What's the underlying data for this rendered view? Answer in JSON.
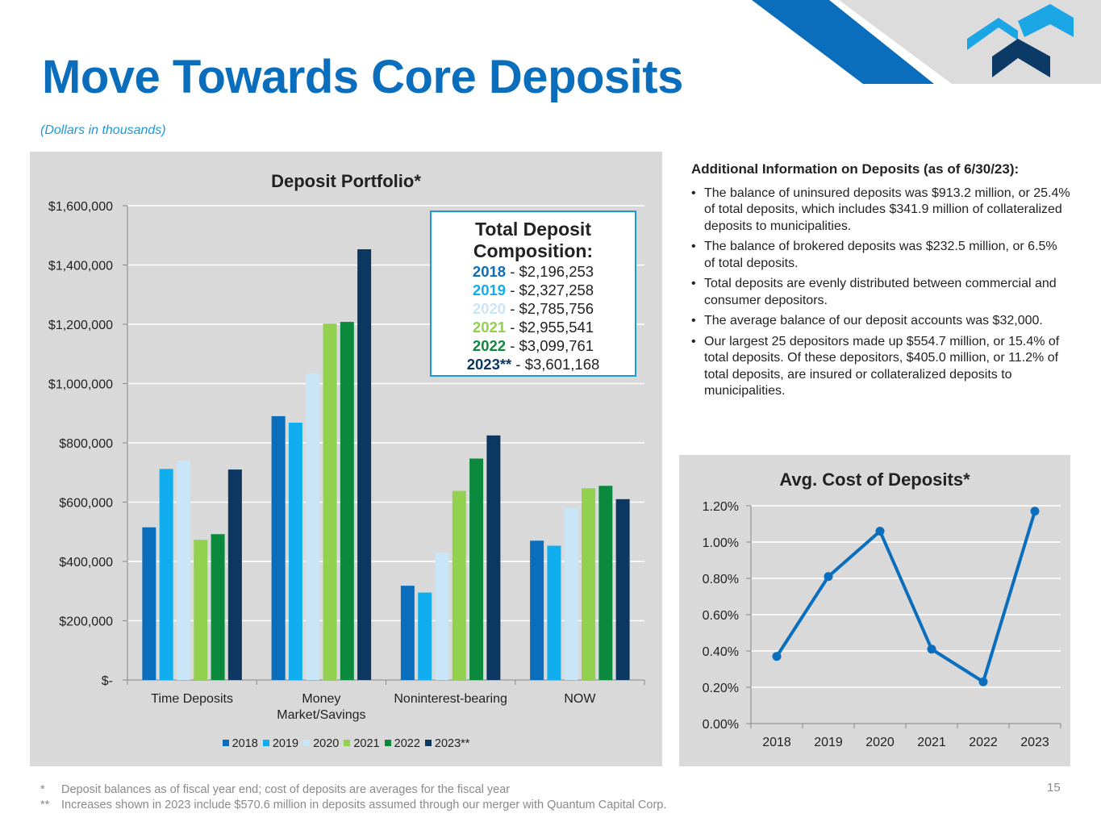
{
  "title": "Move Towards Core Deposits",
  "subtitle": "(Dollars in thousands)",
  "colors": {
    "brand_blue": "#0a6ebd",
    "y2018": "#0a6ebd",
    "y2019": "#10aeef",
    "y2020": "#c9e6f9",
    "y2021": "#92d050",
    "y2022": "#0b8a3e",
    "y2023": "#0b3761"
  },
  "composition": {
    "title_line1": "Total Deposit",
    "title_line2": "Composition:",
    "rows": [
      {
        "year": "2018",
        "value": " - $2,196,253"
      },
      {
        "year": "2019",
        "value": " - $2,327,258"
      },
      {
        "year": "2020",
        "value": " - $2,785,756"
      },
      {
        "year": "2021",
        "value": " - $2,955,541"
      },
      {
        "year": "2022",
        "value": " - $3,099,761"
      },
      {
        "year": "2023**",
        "value": " - $3,601,168"
      }
    ]
  },
  "info": {
    "title": "Additional Information on Deposits (as of 6/30/23):",
    "bullets": [
      "The balance of uninsured deposits was $913.2 million, or 25.4% of total deposits, which includes $341.9 million of collateralized deposits to municipalities.",
      "The balance of brokered deposits was $232.5 million, or 6.5% of total deposits.",
      "Total deposits are evenly distributed between commercial and consumer depositors.",
      "The average balance of our deposit accounts was $32,000.",
      "Our largest 25 depositors made up $554.7 million, or 15.4% of total deposits. Of these depositors, $405.0 million, or 11.2% of total deposits, are insured or collateralized deposits to municipalities."
    ]
  },
  "footnotes": [
    {
      "marker": "*",
      "text": "Deposit balances as of fiscal year end; cost of deposits are averages for the fiscal year"
    },
    {
      "marker": "**",
      "text": "Increases shown in 2023 include $570.6 million in deposits assumed through our merger with Quantum Capital Corp."
    }
  ],
  "page_number": "15",
  "chart_data": [
    {
      "type": "bar",
      "title": "Deposit Portfolio*",
      "categories": [
        "Time Deposits",
        "Money Market/Savings",
        "Noninterest-bearing",
        "NOW"
      ],
      "category_label_lines": [
        [
          "Time Deposits"
        ],
        [
          "Money",
          "Market/Savings"
        ],
        [
          "Noninterest-bearing"
        ],
        [
          "NOW"
        ]
      ],
      "series": [
        {
          "name": "2018",
          "values": [
            515000,
            890000,
            318000,
            470000
          ]
        },
        {
          "name": "2019",
          "values": [
            712000,
            868000,
            295000,
            453000
          ]
        },
        {
          "name": "2020",
          "values": [
            740000,
            1035000,
            430000,
            580000
          ]
        },
        {
          "name": "2021",
          "values": [
            473000,
            1202000,
            638000,
            647000
          ]
        },
        {
          "name": "2022",
          "values": [
            492000,
            1208000,
            747000,
            655000
          ]
        },
        {
          "name": "2023**",
          "values": [
            710000,
            1453000,
            825000,
            610000
          ]
        }
      ],
      "ylim": [
        0,
        1600000
      ],
      "yticks": [
        0,
        200000,
        400000,
        600000,
        800000,
        1000000,
        1200000,
        1400000,
        1600000
      ],
      "ytick_labels": [
        "$-",
        "$200,000",
        "$400,000",
        "$600,000",
        "$800,000",
        "$1,000,000",
        "$1,200,000",
        "$1,400,000",
        "$1,600,000"
      ],
      "xlabel": "",
      "ylabel": "",
      "legend_position": "bottom",
      "grid": true
    },
    {
      "type": "line",
      "title": "Avg. Cost of Deposits*",
      "x": [
        "2018",
        "2019",
        "2020",
        "2021",
        "2022",
        "2023"
      ],
      "y": [
        0.37,
        0.81,
        1.06,
        0.41,
        0.23,
        1.17
      ],
      "ylim": [
        0,
        1.2
      ],
      "yticks": [
        0,
        0.2,
        0.4,
        0.6,
        0.8,
        1.0,
        1.2
      ],
      "ytick_labels": [
        "0.00%",
        "0.20%",
        "0.40%",
        "0.60%",
        "0.80%",
        "1.00%",
        "1.20%"
      ],
      "xlabel": "",
      "ylabel": "",
      "grid": true
    }
  ]
}
